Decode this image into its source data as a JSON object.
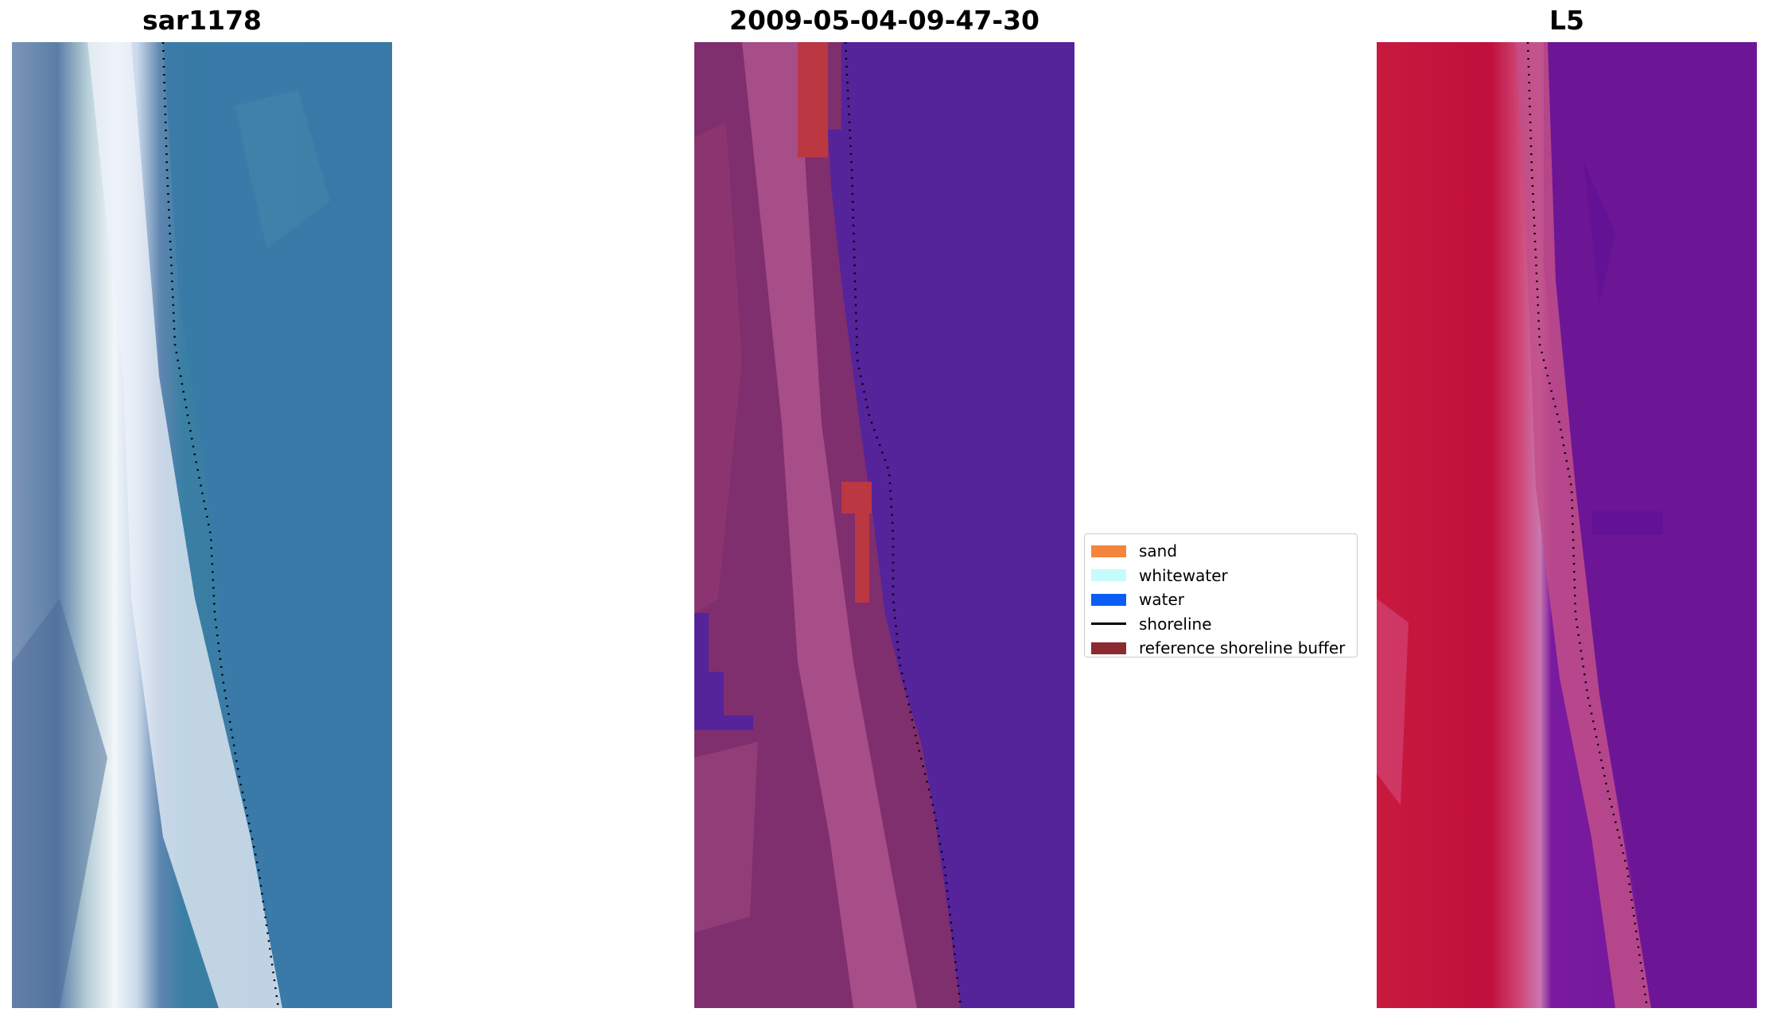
{
  "panels": [
    {
      "title": "sar1178"
    },
    {
      "title": "2009-05-04-09-47-30"
    },
    {
      "title": "L5"
    }
  ],
  "legend": {
    "items": [
      {
        "label": "sand",
        "color": "#f4853b",
        "kind": "patch"
      },
      {
        "label": "whitewater",
        "color": "#c8fbfb",
        "kind": "patch"
      },
      {
        "label": "water",
        "color": "#0b5cf2",
        "kind": "patch"
      },
      {
        "label": "shoreline",
        "color": "#000000",
        "kind": "line"
      },
      {
        "label": "reference shoreline buffer",
        "color": "#8c2a32",
        "kind": "patch"
      }
    ]
  },
  "colors": {
    "rgb_water": "#3a7aa8",
    "rgb_whitewater": "#e8eef6",
    "rgb_beach": "#5c80a8",
    "class_water": "#55239a",
    "class_land": "#7f2e6e",
    "class_beach_light": "#b2558f",
    "class_buffer_red": "#bb3742",
    "ndwi_land": "#c7153f",
    "ndwi_water": "#6a1496"
  }
}
